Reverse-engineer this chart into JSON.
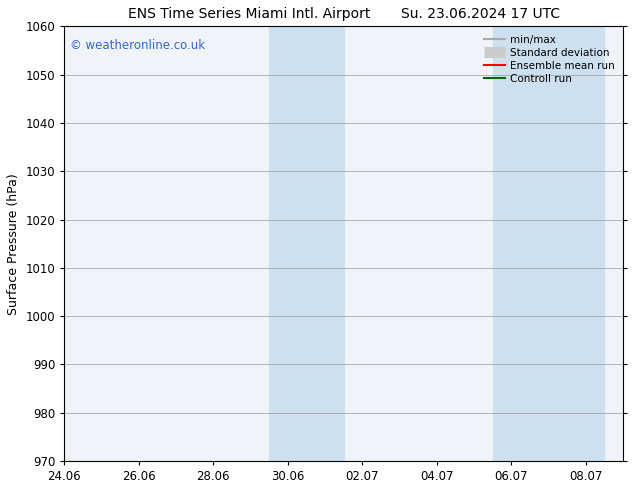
{
  "title_left": "ENS Time Series Miami Intl. Airport",
  "title_right": "Su. 23.06.2024 17 UTC",
  "ylabel": "Surface Pressure (hPa)",
  "ylim": [
    970,
    1060
  ],
  "yticks": [
    970,
    980,
    990,
    1000,
    1010,
    1020,
    1030,
    1040,
    1050,
    1060
  ],
  "xtick_labels": [
    "24.06",
    "26.06",
    "28.06",
    "30.06",
    "02.07",
    "04.07",
    "06.07",
    "08.07"
  ],
  "xtick_positions": [
    0,
    2,
    4,
    6,
    8,
    10,
    12,
    14
  ],
  "xlim": [
    0,
    15
  ],
  "shaded_bands": [
    {
      "x_start": 5.5,
      "x_end": 7.5
    },
    {
      "x_start": 11.5,
      "x_end": 14.5
    }
  ],
  "shaded_color": "#cde0ef",
  "bg_plot_color": "#f0f4f8",
  "watermark_text": "© weatheronline.co.uk",
  "watermark_color": "#3366cc",
  "legend_items": [
    {
      "label": "min/max",
      "color": "#aaaaaa",
      "lw": 1.5,
      "ls": "-"
    },
    {
      "label": "Standard deviation",
      "color": "#cccccc",
      "lw": 6,
      "ls": "-"
    },
    {
      "label": "Ensemble mean run",
      "color": "#ff0000",
      "lw": 1.5,
      "ls": "-"
    },
    {
      "label": "Controll run",
      "color": "#006600",
      "lw": 1.5,
      "ls": "-"
    }
  ],
  "bg_color": "#ffffff",
  "grid_color": "#999999",
  "title_fontsize": 10,
  "label_fontsize": 9,
  "tick_fontsize": 8.5
}
